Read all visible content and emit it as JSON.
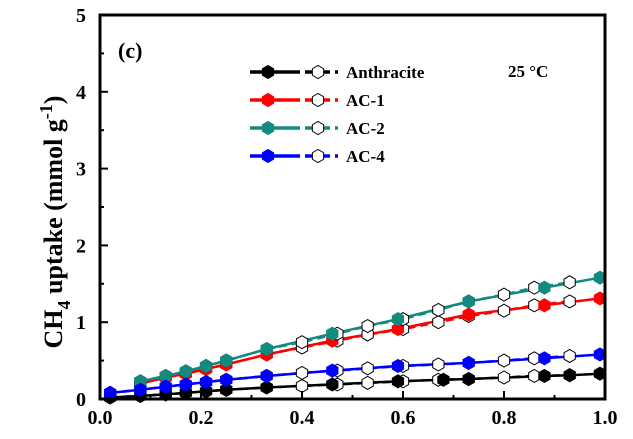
{
  "chart_data": {
    "type": "scatter",
    "panel_label": "(c)",
    "annotation": "25 °C",
    "ylabel": {
      "main": "CH",
      "sub": "4",
      "rest": " uptake (mmol g",
      "sup": "-1",
      "close": ")"
    },
    "xlim": [
      0.0,
      1.0
    ],
    "ylim": [
      0,
      5
    ],
    "xticks": [
      "0.0",
      "0.2",
      "0.4",
      "0.6",
      "0.8",
      "1.0"
    ],
    "yticks": [
      "0",
      "1",
      "2",
      "3",
      "4",
      "5"
    ],
    "legend_position": "top-right",
    "series": [
      {
        "name": "Anthracite",
        "color": "#000000",
        "adsorption": {
          "x": [
            0.02,
            0.08,
            0.13,
            0.17,
            0.21,
            0.25,
            0.33,
            0.46,
            0.59,
            0.68,
            0.73,
            0.88,
            0.93,
            0.99
          ],
          "y": [
            0.02,
            0.04,
            0.06,
            0.08,
            0.1,
            0.12,
            0.15,
            0.19,
            0.23,
            0.25,
            0.26,
            0.3,
            0.31,
            0.33
          ]
        },
        "desorption": {
          "x": [
            0.02,
            0.08,
            0.13,
            0.17,
            0.21,
            0.25,
            0.33,
            0.4,
            0.47,
            0.53,
            0.6,
            0.67,
            0.73,
            0.8,
            0.86,
            0.93
          ],
          "y": [
            0.02,
            0.04,
            0.06,
            0.08,
            0.1,
            0.12,
            0.15,
            0.17,
            0.19,
            0.21,
            0.23,
            0.25,
            0.26,
            0.28,
            0.3,
            0.31
          ]
        }
      },
      {
        "name": "AC-1",
        "color": "#ff0000",
        "adsorption": {
          "x": [
            0.08,
            0.13,
            0.17,
            0.21,
            0.25,
            0.33,
            0.46,
            0.59,
            0.73,
            0.88,
            0.99
          ],
          "y": [
            0.2,
            0.28,
            0.33,
            0.39,
            0.45,
            0.58,
            0.76,
            0.91,
            1.1,
            1.22,
            1.31
          ]
        },
        "desorption": {
          "x": [
            0.08,
            0.13,
            0.17,
            0.21,
            0.25,
            0.33,
            0.4,
            0.47,
            0.53,
            0.6,
            0.67,
            0.73,
            0.8,
            0.86,
            0.93
          ],
          "y": [
            0.2,
            0.28,
            0.33,
            0.39,
            0.45,
            0.58,
            0.67,
            0.76,
            0.84,
            0.91,
            1.0,
            1.08,
            1.15,
            1.22,
            1.27
          ]
        }
      },
      {
        "name": "AC-2",
        "color": "#138a80",
        "adsorption": {
          "x": [
            0.08,
            0.13,
            0.17,
            0.21,
            0.25,
            0.33,
            0.46,
            0.59,
            0.73,
            0.88,
            0.99
          ],
          "y": [
            0.23,
            0.3,
            0.36,
            0.43,
            0.5,
            0.65,
            0.85,
            1.04,
            1.27,
            1.45,
            1.58
          ]
        },
        "desorption": {
          "x": [
            0.08,
            0.13,
            0.17,
            0.21,
            0.25,
            0.33,
            0.4,
            0.47,
            0.53,
            0.6,
            0.67,
            0.73,
            0.8,
            0.86,
            0.93
          ],
          "y": [
            0.23,
            0.3,
            0.36,
            0.43,
            0.5,
            0.65,
            0.74,
            0.85,
            0.95,
            1.04,
            1.16,
            1.27,
            1.36,
            1.45,
            1.52
          ]
        }
      },
      {
        "name": "AC-4",
        "color": "#0000ff",
        "adsorption": {
          "x": [
            0.02,
            0.08,
            0.13,
            0.17,
            0.21,
            0.25,
            0.33,
            0.46,
            0.59,
            0.73,
            0.88,
            0.99
          ],
          "y": [
            0.08,
            0.12,
            0.16,
            0.19,
            0.22,
            0.25,
            0.3,
            0.37,
            0.43,
            0.47,
            0.53,
            0.58
          ]
        },
        "desorption": {
          "x": [
            0.02,
            0.08,
            0.13,
            0.17,
            0.21,
            0.25,
            0.33,
            0.4,
            0.47,
            0.53,
            0.6,
            0.67,
            0.73,
            0.8,
            0.86,
            0.93
          ],
          "y": [
            0.08,
            0.12,
            0.16,
            0.19,
            0.22,
            0.25,
            0.3,
            0.34,
            0.37,
            0.4,
            0.43,
            0.45,
            0.47,
            0.5,
            0.53,
            0.56
          ]
        }
      }
    ]
  }
}
